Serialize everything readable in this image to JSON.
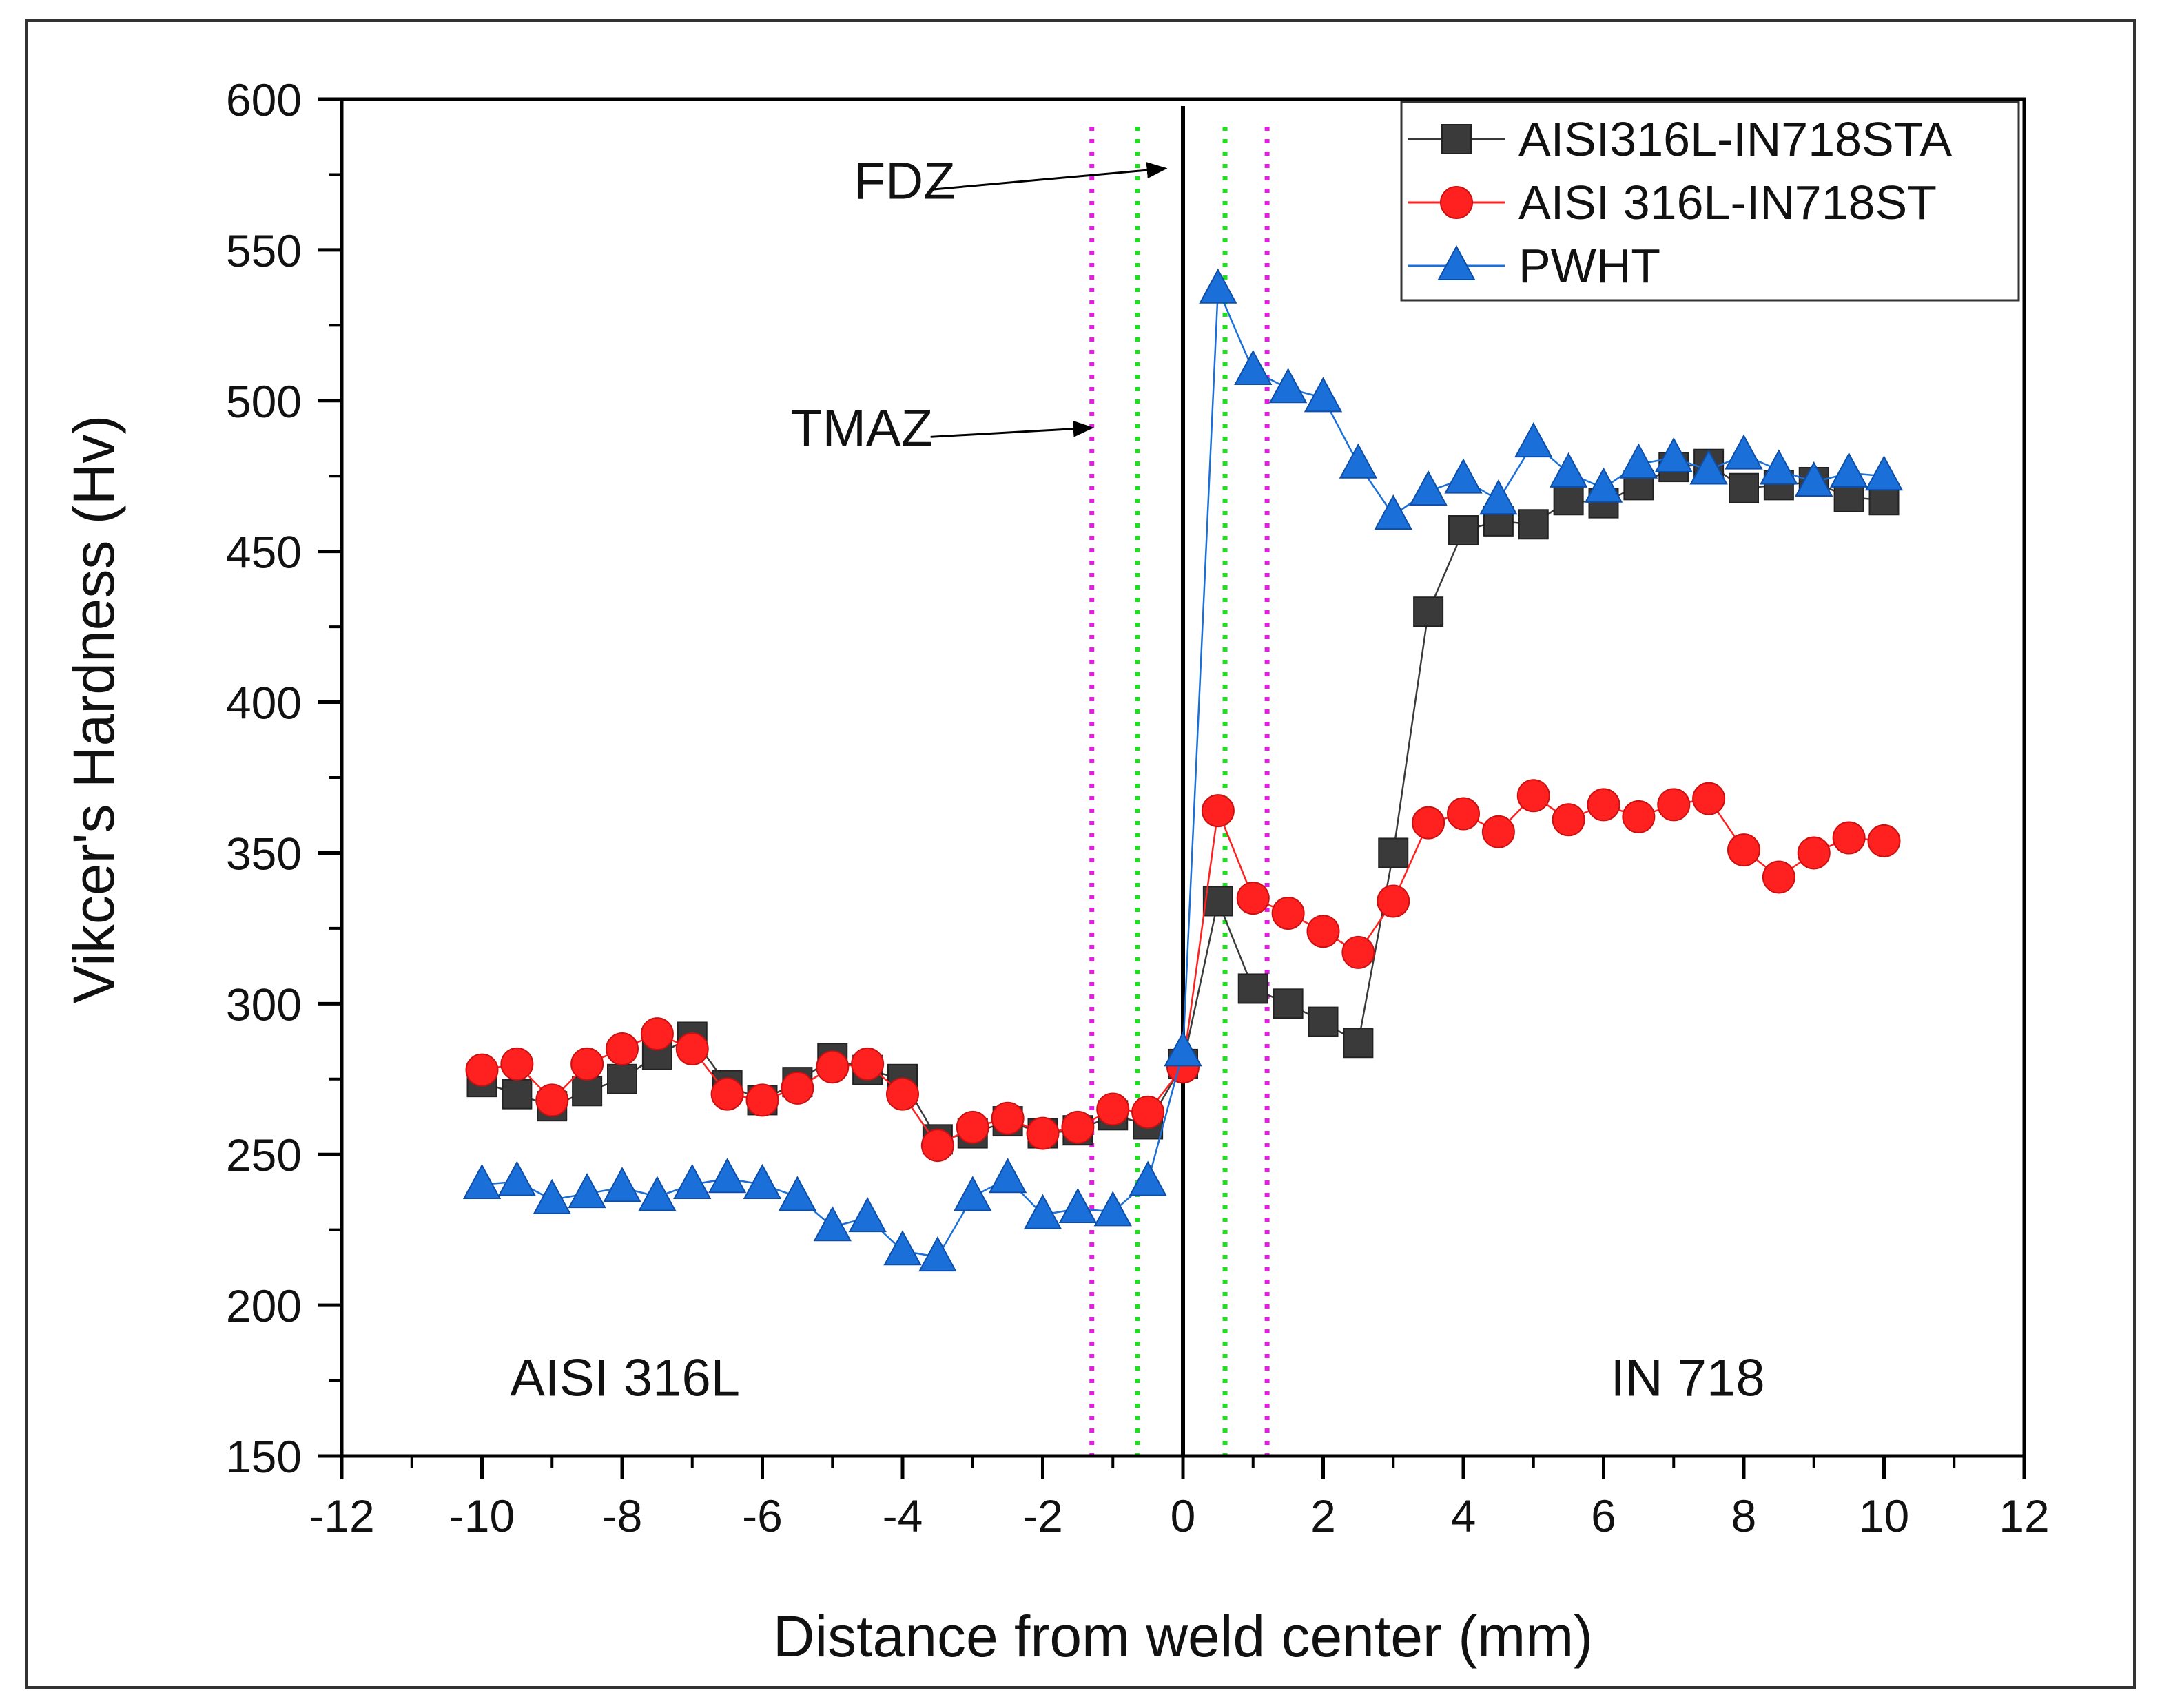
{
  "chart_data": {
    "type": "line",
    "title": "",
    "xlabel": "Distance from weld center (mm)",
    "ylabel": "Vikcer's Hardness (Hv)",
    "xlim": [
      -12,
      12
    ],
    "ylim": [
      150,
      600
    ],
    "xticks": [
      -12,
      -10,
      -8,
      -6,
      -4,
      -2,
      0,
      2,
      4,
      6,
      8,
      10,
      12
    ],
    "yticks": [
      150,
      200,
      250,
      300,
      350,
      400,
      450,
      500,
      550,
      600
    ],
    "grid": false,
    "legend_position": "top-right",
    "x": [
      -10,
      -9.5,
      -9,
      -8.5,
      -8,
      -7.5,
      -7,
      -6.5,
      -6,
      -5.5,
      -5,
      -4.5,
      -4,
      -3.5,
      -3,
      -2.5,
      -2,
      -1.5,
      -1,
      -0.5,
      0,
      0.5,
      1,
      1.5,
      2,
      2.5,
      3,
      3.5,
      4,
      4.5,
      5,
      5.5,
      6,
      6.5,
      7,
      7.5,
      8,
      8.5,
      9,
      9.5,
      10
    ],
    "series": [
      {
        "name": "AISI316L-IN718STA",
        "color": "#3a3a3a",
        "marker": "square",
        "values": [
          274,
          270,
          266,
          271,
          275,
          283,
          289,
          273,
          268,
          274,
          282,
          278,
          275,
          255,
          257,
          261,
          257,
          258,
          263,
          260,
          280,
          334,
          305,
          300,
          294,
          287,
          350,
          430,
          457,
          460,
          459,
          467,
          466,
          472,
          478,
          479,
          471,
          472,
          473,
          468,
          467
        ]
      },
      {
        "name": "AISI 316L-IN718ST",
        "color": "#ff2020",
        "marker": "circle",
        "values": [
          278,
          280,
          268,
          280,
          285,
          290,
          285,
          270,
          268,
          272,
          279,
          280,
          270,
          253,
          259,
          262,
          257,
          259,
          265,
          264,
          279,
          364,
          335,
          330,
          324,
          317,
          334,
          360,
          363,
          357,
          369,
          361,
          366,
          362,
          366,
          368,
          351,
          342,
          350,
          355,
          354
        ]
      },
      {
        "name": "PWHT",
        "color": "#1a6fd8",
        "marker": "triangle",
        "values": [
          240,
          241,
          235,
          237,
          239,
          236,
          240,
          242,
          240,
          236,
          226,
          229,
          218,
          216,
          236,
          242,
          230,
          232,
          231,
          241,
          284,
          537,
          510,
          504,
          501,
          479,
          462,
          470,
          474,
          467,
          486,
          476,
          471,
          479,
          481,
          477,
          482,
          477,
          473,
          476,
          475
        ]
      }
    ],
    "zone_lines": [
      {
        "x": 0,
        "style": "solid",
        "color": "#000000"
      },
      {
        "x": -0.65,
        "style": "dotted",
        "color": "#22dd22"
      },
      {
        "x": 0.6,
        "style": "dotted",
        "color": "#22dd22"
      },
      {
        "x": -1.3,
        "style": "dotted",
        "color": "#e020e0"
      },
      {
        "x": 1.2,
        "style": "dotted",
        "color": "#e020e0"
      }
    ],
    "annotations": [
      {
        "text": "FDZ",
        "x": -4.7,
        "y": 567,
        "arrow_from": [
          -3.6,
          570
        ],
        "arrow_to": [
          -0.25,
          577
        ]
      },
      {
        "text": "TMAZ",
        "x": -5.6,
        "y": 485,
        "arrow_from": [
          -3.6,
          488
        ],
        "arrow_to": [
          -1.3,
          491
        ]
      },
      {
        "text": "AISI 316L",
        "x": -9.6,
        "y": 170
      },
      {
        "text": "IN 718",
        "x": 6.1,
        "y": 170
      }
    ]
  }
}
